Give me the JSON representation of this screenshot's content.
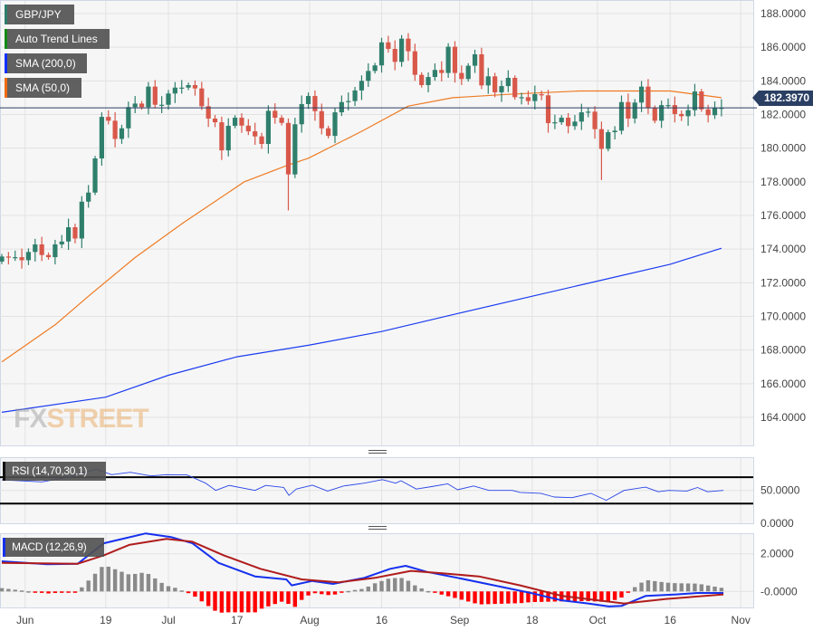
{
  "legends": {
    "symbol": {
      "label": "GBP/JPY",
      "color": "#2e7d6b"
    },
    "trend": {
      "label": "Auto Trend Lines",
      "color": "#138a13"
    },
    "sma200": {
      "label": "SMA (200,0)",
      "color": "#1030ff"
    },
    "sma50": {
      "label": "SMA (50,0)",
      "color": "#ee6a10"
    }
  },
  "rsi_label": "RSI (14,70,30,1)",
  "macd_label": "MACD (12,26,9)",
  "watermark": {
    "fx": "FX",
    "street": "STREET"
  },
  "current_price": "182.3970",
  "colors": {
    "up": "#2f7f6c",
    "down": "#d8584a",
    "sma200": "#1b3cf0",
    "sma50": "#ee7a22",
    "rsi": "#2a45e8",
    "macd": "#1530ee",
    "signal": "#b01c1c",
    "hist_pos": "#8a8a8a",
    "hist_neg": "#ff0000",
    "price_line": "#2b3f63"
  },
  "chart_data": [
    {
      "type": "candlestick",
      "title": "GBP/JPY",
      "ylim": [
        162,
        189
      ],
      "yticks": [
        "188.0000",
        "186.0000",
        "184.0000",
        "182.0000",
        "180.0000",
        "178.0000",
        "176.0000",
        "174.0000",
        "172.0000",
        "170.0000",
        "168.0000",
        "166.0000",
        "164.0000"
      ],
      "ytick_values": [
        188,
        186,
        184,
        182,
        180,
        178,
        176,
        174,
        172,
        170,
        168,
        166,
        164
      ],
      "xticks": [
        {
          "label": "Jun",
          "day": 3.5
        },
        {
          "label": "19",
          "day": 15.6
        },
        {
          "label": "Jul",
          "day": 25
        },
        {
          "label": "17",
          "day": 35.3
        },
        {
          "label": "Aug",
          "day": 46.2
        },
        {
          "label": "16",
          "day": 57
        },
        {
          "label": "Sep",
          "day": 68.7
        },
        {
          "label": "18",
          "day": 79.6
        },
        {
          "label": "Oct",
          "day": 89.4
        },
        {
          "label": "16",
          "day": 100.3
        },
        {
          "label": "Nov",
          "day": 110.9
        }
      ],
      "closes": [
        173.56,
        173.52,
        173.52,
        173.34,
        173.83,
        174.28,
        173.65,
        173.52,
        174.28,
        174.45,
        175.3,
        174.63,
        176.82,
        177.36,
        179.39,
        181.86,
        181.63,
        180.55,
        181.18,
        182.44,
        182.65,
        182.44,
        183.66,
        182.58,
        182.58,
        183.25,
        183.6,
        183.6,
        183.75,
        183.55,
        182.49,
        181.76,
        181.54,
        179.87,
        181.33,
        181.81,
        181.34,
        181.0,
        180.7,
        180.25,
        182.22,
        181.81,
        181.5,
        178.44,
        181.42,
        182.62,
        183.1,
        182.2,
        181.18,
        180.73,
        182.13,
        182.74,
        182.8,
        183.43,
        184.0,
        184.59,
        184.92,
        186.29,
        185.9,
        185.13,
        186.51,
        185.76,
        184.36,
        183.75,
        184.23,
        184.65,
        184.47,
        186.03,
        184.47,
        184.11,
        184.9,
        185.58,
        183.73,
        184.27,
        183.32,
        183.69,
        184.18,
        183.03,
        183.03,
        182.8,
        183.21,
        183.14,
        181.49,
        181.54,
        181.81,
        181.31,
        181.58,
        182.13,
        182.17,
        181.13,
        179.96,
        180.95,
        181.04,
        182.74,
        181.76,
        182.71,
        183.66,
        182.39,
        181.63,
        182.56,
        182.56,
        182.03,
        181.9,
        182.26,
        183.37,
        182.31,
        181.96,
        182.39,
        182.4
      ],
      "notable_lows": [
        {
          "day": 43,
          "low": 176.3
        },
        {
          "day": 90,
          "low": 178.1
        }
      ],
      "series": [
        {
          "name": "SMA (200,0)",
          "points": [
            [
              0,
              164.3
            ],
            [
              15.6,
              165.2
            ],
            [
              25,
              166.5
            ],
            [
              35.3,
              167.6
            ],
            [
              46.2,
              168.3
            ],
            [
              57,
              169.1
            ],
            [
              68.7,
              170.2
            ],
            [
              79.6,
              171.2
            ],
            [
              89.4,
              172.1
            ],
            [
              100.3,
              173.1
            ],
            [
              108,
              174.05
            ]
          ]
        },
        {
          "name": "SMA (50,0)",
          "points": [
            [
              0,
              167.3
            ],
            [
              8,
              169.5
            ],
            [
              13.3,
              171.3
            ],
            [
              20,
              173.5
            ],
            [
              27,
              175.5
            ],
            [
              36.4,
              178.0
            ],
            [
              43,
              179.0
            ],
            [
              46,
              179.4
            ],
            [
              54,
              181.0
            ],
            [
              61,
              182.5
            ],
            [
              67.7,
              183.0
            ],
            [
              76,
              183.2
            ],
            [
              86.7,
              183.4
            ],
            [
              100.3,
              183.4
            ],
            [
              108,
              183.0
            ]
          ]
        }
      ]
    },
    {
      "type": "line",
      "title": "RSI (14,70,30,1)",
      "ylim": [
        0,
        100
      ],
      "yticks": [
        "50.0000",
        "0.0000"
      ],
      "ytick_values": [
        50,
        0
      ],
      "levels": [
        70,
        30
      ],
      "points": [
        [
          0,
          66
        ],
        [
          6,
          63
        ],
        [
          9.9,
          70
        ],
        [
          12.2,
          77
        ],
        [
          14.2,
          82
        ],
        [
          16.5,
          74
        ],
        [
          19.3,
          77.5
        ],
        [
          22.4,
          72
        ],
        [
          24.7,
          74
        ],
        [
          27.8,
          73.5
        ],
        [
          30.6,
          61
        ],
        [
          32.1,
          50
        ],
        [
          34.1,
          57.5
        ],
        [
          38,
          50
        ],
        [
          39.6,
          57.5
        ],
        [
          42.3,
          54.5
        ],
        [
          43.1,
          42.5
        ],
        [
          44.2,
          52
        ],
        [
          46.6,
          58
        ],
        [
          48.9,
          49
        ],
        [
          51.3,
          56.7
        ],
        [
          54.4,
          61
        ],
        [
          57.1,
          66.4
        ],
        [
          59.1,
          61
        ],
        [
          59.9,
          64.7
        ],
        [
          62.2,
          52
        ],
        [
          64.5,
          55.8
        ],
        [
          66.9,
          60
        ],
        [
          68.4,
          51
        ],
        [
          70.8,
          56.7
        ],
        [
          73.1,
          50
        ],
        [
          76.6,
          50
        ],
        [
          77.8,
          47
        ],
        [
          80.9,
          45.6
        ],
        [
          82.9,
          40
        ],
        [
          85.6,
          39
        ],
        [
          88.4,
          45.6
        ],
        [
          90.7,
          35
        ],
        [
          93.4,
          50
        ],
        [
          96.6,
          55
        ],
        [
          98.5,
          48
        ],
        [
          100.1,
          50
        ],
        [
          102.8,
          49
        ],
        [
          104.4,
          54.4
        ],
        [
          105.9,
          48
        ],
        [
          108.3,
          50
        ]
      ]
    },
    {
      "type": "line",
      "title": "MACD (12,26,9)",
      "ylim": [
        -0.85,
        3.1
      ],
      "yticks": [
        "2.0000",
        "-0.0000"
      ],
      "ytick_values": [
        2,
        0
      ],
      "series": [
        {
          "name": "MACD",
          "points": [
            [
              0,
              1.6
            ],
            [
              6.8,
              1.44
            ],
            [
              11.4,
              1.47
            ],
            [
              15.3,
              2.56
            ],
            [
              21.6,
              3.08
            ],
            [
              25.5,
              2.88
            ],
            [
              28.6,
              2.56
            ],
            [
              32.5,
              1.52
            ],
            [
              38,
              0.8
            ],
            [
              42.7,
              0.64
            ],
            [
              43.5,
              0.32
            ],
            [
              46.6,
              0.56
            ],
            [
              49.7,
              0.4
            ],
            [
              54.4,
              0.72
            ],
            [
              58.3,
              1.2
            ],
            [
              60.6,
              1.36
            ],
            [
              63.8,
              1.04
            ],
            [
              68.4,
              0.72
            ],
            [
              73.9,
              0.32
            ],
            [
              79.4,
              -0.08
            ],
            [
              84.1,
              -0.48
            ],
            [
              88,
              -0.64
            ],
            [
              91.1,
              -0.8
            ],
            [
              93,
              -0.77
            ],
            [
              96.6,
              -0.24
            ],
            [
              101.2,
              -0.16
            ],
            [
              104.4,
              -0.08
            ],
            [
              108.3,
              -0.08
            ]
          ]
        },
        {
          "name": "Signal",
          "points": [
            [
              0,
              1.52
            ],
            [
              11.4,
              1.47
            ],
            [
              15.3,
              1.92
            ],
            [
              19.2,
              2.48
            ],
            [
              24.7,
              2.79
            ],
            [
              28.6,
              2.64
            ],
            [
              33.3,
              1.92
            ],
            [
              38.8,
              1.2
            ],
            [
              45,
              0.64
            ],
            [
              50.5,
              0.48
            ],
            [
              56,
              0.72
            ],
            [
              61.4,
              1.09
            ],
            [
              66.1,
              0.96
            ],
            [
              71.6,
              0.8
            ],
            [
              77.8,
              0.32
            ],
            [
              84.1,
              -0.24
            ],
            [
              93.4,
              -0.64
            ],
            [
              99.7,
              -0.4
            ],
            [
              108.3,
              -0.16
            ]
          ]
        }
      ],
      "histogram": "MACD minus Signal"
    }
  ]
}
